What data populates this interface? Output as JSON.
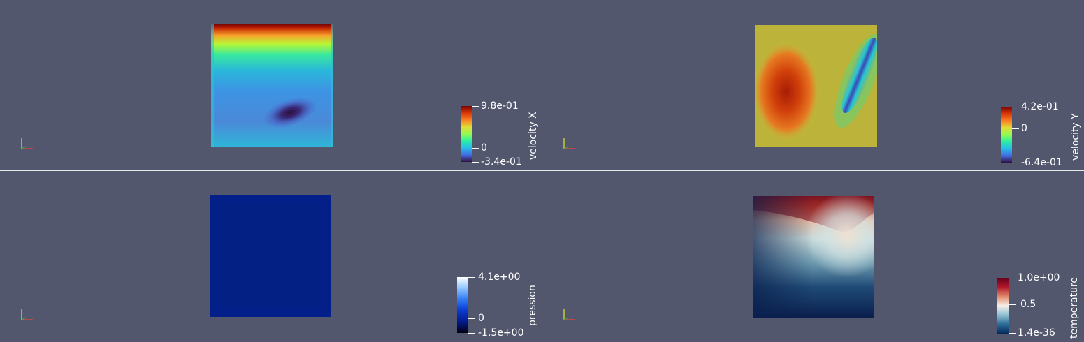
{
  "viewports": [
    {
      "id": "velocity-x",
      "legend": {
        "title": "velocity X",
        "max_label": "9.8e-01",
        "zero_label": "0",
        "min_label": "-3.4e-01",
        "colormap": "turbo"
      }
    },
    {
      "id": "velocity-y",
      "legend": {
        "title": "velocity Y",
        "max_label": "4.2e-01",
        "zero_label": "0",
        "min_label": "-6.4e-01",
        "colormap": "turbo"
      }
    },
    {
      "id": "pression",
      "legend": {
        "title": "pression",
        "max_label": "4.1e+00",
        "zero_label": "0",
        "min_label": "-1.5e+00",
        "colormap": "blue-white"
      }
    },
    {
      "id": "temperature",
      "legend": {
        "title": "temperature",
        "max_label": "1.0e+00",
        "zero_label": "0.5",
        "min_label": "1.4e-36",
        "colormap": "blue-white-red"
      }
    }
  ],
  "colors": {
    "background": "#52576e",
    "separator": "#e8e8e8",
    "axis_x": "#d9463c",
    "axis_y": "#c8c83a",
    "axis_z": "#3aa04a"
  }
}
